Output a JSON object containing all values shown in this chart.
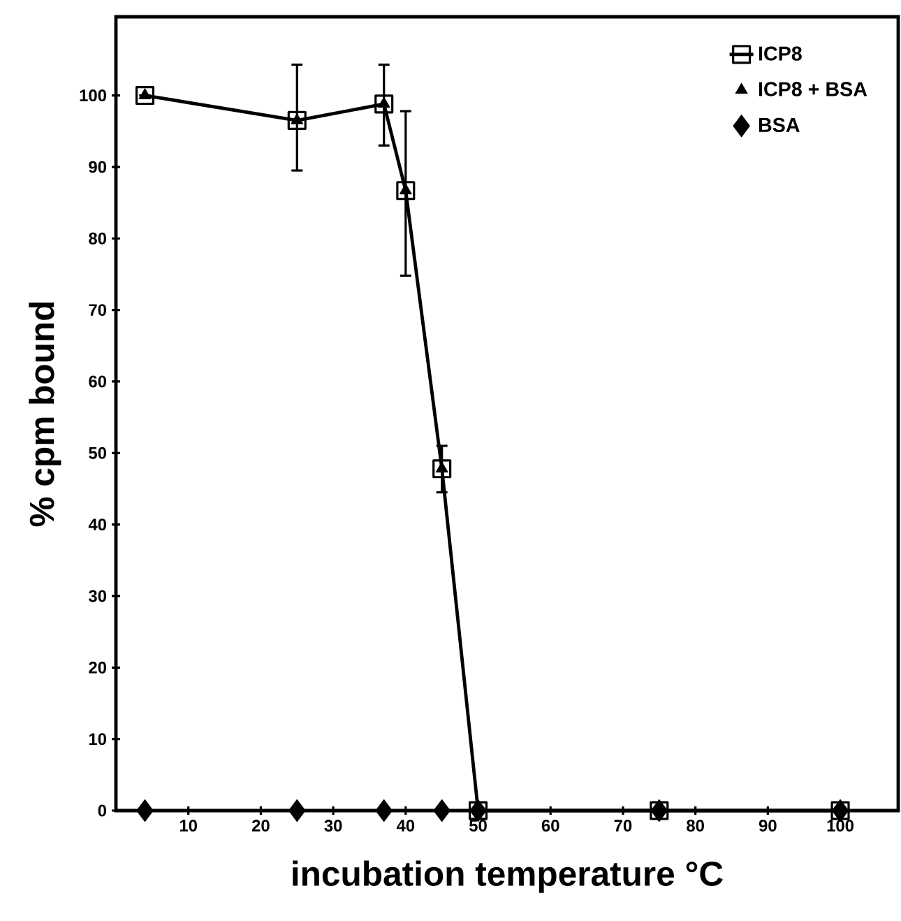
{
  "chart_data": {
    "type": "line",
    "xlabel": "incubation temperature °C",
    "ylabel": "% cpm bound",
    "xlim": [
      0,
      108
    ],
    "ylim": [
      0,
      111
    ],
    "xticks": [
      10,
      20,
      30,
      40,
      50,
      60,
      70,
      80,
      90,
      100
    ],
    "yticks": [
      0,
      10,
      20,
      30,
      40,
      50,
      60,
      70,
      80,
      90,
      100
    ],
    "legend": "top right",
    "grid": false,
    "series": [
      {
        "name": "ICP8",
        "marker": "square",
        "color": "#000000",
        "x": [
          4,
          25,
          37,
          40,
          45,
          50,
          75,
          100
        ],
        "values": [
          100,
          96.5,
          98.8,
          86.7,
          47.8,
          0,
          0,
          0
        ],
        "errors": [
          null,
          [
            89.5,
            104.3
          ],
          [
            93,
            104.3
          ],
          [
            74.8,
            97.8
          ],
          [
            44.5,
            51
          ],
          null,
          null,
          null
        ]
      },
      {
        "name": "ICP8 + BSA",
        "type": "scatter",
        "marker": "triangle",
        "color": "#000000",
        "x": [
          4,
          25,
          37,
          40,
          45
        ],
        "values": [
          100,
          96.5,
          98.8,
          86.7,
          47.8
        ]
      },
      {
        "name": "BSA",
        "type": "scatter",
        "marker": "diamond",
        "color": "#000000",
        "x": [
          4,
          25,
          37,
          45,
          50,
          75,
          100
        ],
        "values": [
          0,
          0,
          0,
          0,
          0,
          0,
          0
        ]
      }
    ]
  }
}
